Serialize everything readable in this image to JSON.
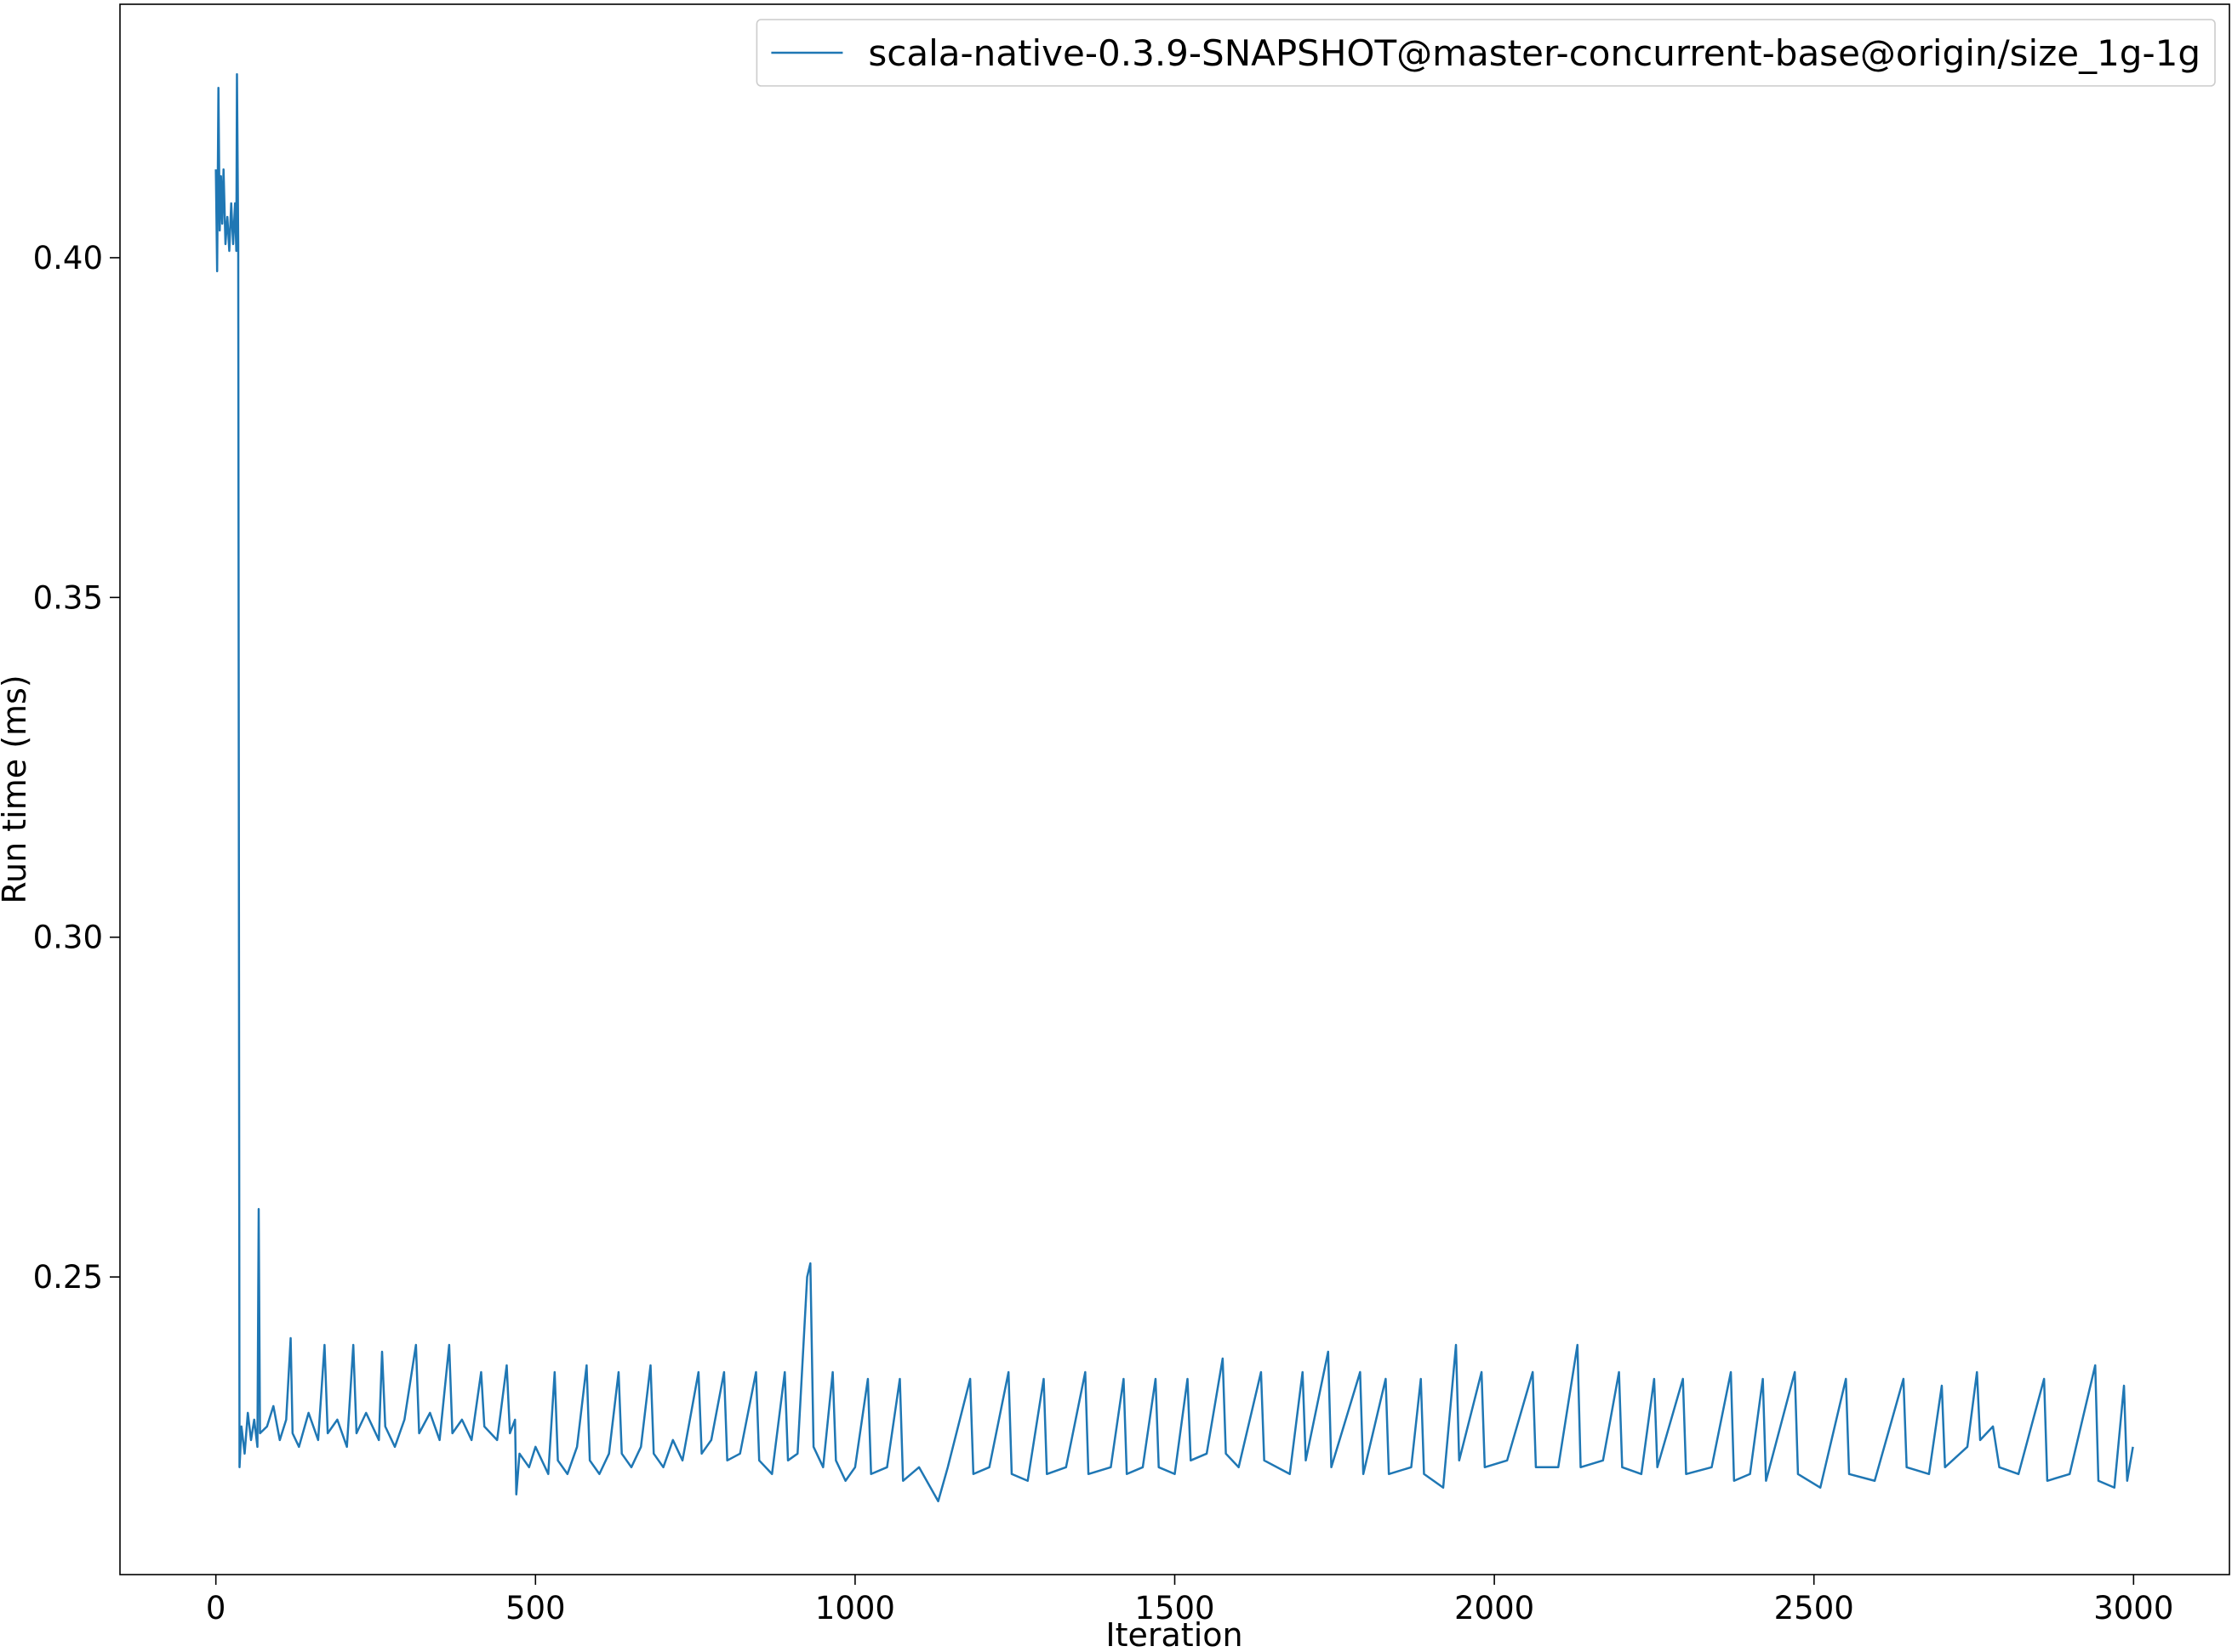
{
  "chart_data": {
    "type": "line",
    "xlabel": "Iteration",
    "ylabel": "Run time (ms)",
    "xlim": [
      -150,
      3150
    ],
    "ylim": [
      0.2062,
      0.4373
    ],
    "xticks": [
      0,
      500,
      1000,
      1500,
      2000,
      2500,
      3000
    ],
    "yticks": [
      0.25,
      {
        "value": 0.3,
        "label": "0.30"
      },
      0.35,
      {
        "value": 0.4,
        "label": "0.40"
      }
    ],
    "grid": false,
    "legend": "upper right",
    "x": [
      0,
      2,
      4,
      6,
      8,
      10,
      12,
      15,
      18,
      21,
      24,
      27,
      30,
      32,
      33,
      35,
      37,
      40,
      45,
      50,
      55,
      60,
      65,
      67,
      69,
      80,
      90,
      100,
      110,
      117,
      120,
      130,
      145,
      160,
      170,
      175,
      190,
      205,
      215,
      220,
      235,
      255,
      260,
      265,
      280,
      295,
      313,
      318,
      335,
      350,
      365,
      370,
      385,
      400,
      415,
      420,
      440,
      455,
      460,
      468,
      470,
      475,
      490,
      500,
      520,
      530,
      535,
      550,
      565,
      580,
      585,
      600,
      615,
      630,
      635,
      650,
      665,
      680,
      685,
      700,
      715,
      730,
      755,
      760,
      775,
      795,
      800,
      820,
      845,
      850,
      870,
      890,
      895,
      910,
      925,
      930,
      935,
      950,
      965,
      970,
      985,
      1000,
      1020,
      1025,
      1050,
      1070,
      1075,
      1100,
      1130,
      1145,
      1180,
      1185,
      1210,
      1240,
      1245,
      1270,
      1295,
      1300,
      1330,
      1360,
      1365,
      1400,
      1420,
      1425,
      1450,
      1470,
      1475,
      1500,
      1520,
      1525,
      1550,
      1575,
      1580,
      1600,
      1635,
      1640,
      1680,
      1700,
      1705,
      1740,
      1745,
      1790,
      1795,
      1830,
      1835,
      1870,
      1885,
      1890,
      1920,
      1940,
      1945,
      1980,
      1985,
      2020,
      2060,
      2065,
      2100,
      2130,
      2135,
      2170,
      2195,
      2200,
      2230,
      2250,
      2255,
      2295,
      2300,
      2340,
      2370,
      2375,
      2400,
      2420,
      2425,
      2470,
      2475,
      2510,
      2550,
      2555,
      2595,
      2640,
      2645,
      2680,
      2700,
      2705,
      2740,
      2755,
      2760,
      2780,
      2790,
      2820,
      2860,
      2865,
      2900,
      2940,
      2945,
      2970,
      2985,
      2990,
      2999
    ],
    "series": [
      {
        "name": "scala-native-0.3.9-SNAPSHOT@master-concurrent-base@origin/size_1g-1g",
        "color": "#1f77b4",
        "values": [
          0.413,
          0.398,
          0.425,
          0.404,
          0.412,
          0.405,
          0.413,
          0.402,
          0.406,
          0.401,
          0.408,
          0.402,
          0.408,
          0.401,
          0.427,
          0.402,
          0.222,
          0.228,
          0.224,
          0.23,
          0.226,
          0.229,
          0.225,
          0.26,
          0.227,
          0.228,
          0.231,
          0.226,
          0.229,
          0.241,
          0.227,
          0.225,
          0.23,
          0.226,
          0.24,
          0.227,
          0.229,
          0.225,
          0.24,
          0.227,
          0.23,
          0.226,
          0.239,
          0.228,
          0.225,
          0.229,
          0.24,
          0.227,
          0.23,
          0.226,
          0.24,
          0.227,
          0.229,
          0.226,
          0.236,
          0.228,
          0.226,
          0.237,
          0.227,
          0.229,
          0.218,
          0.224,
          0.222,
          0.225,
          0.221,
          0.236,
          0.223,
          0.221,
          0.225,
          0.237,
          0.223,
          0.221,
          0.224,
          0.236,
          0.224,
          0.222,
          0.225,
          0.237,
          0.224,
          0.222,
          0.226,
          0.223,
          0.236,
          0.224,
          0.226,
          0.236,
          0.223,
          0.224,
          0.236,
          0.223,
          0.221,
          0.236,
          0.223,
          0.224,
          0.25,
          0.252,
          0.225,
          0.222,
          0.236,
          0.223,
          0.22,
          0.222,
          0.235,
          0.221,
          0.222,
          0.235,
          0.22,
          0.222,
          0.217,
          0.222,
          0.235,
          0.221,
          0.222,
          0.236,
          0.221,
          0.22,
          0.235,
          0.221,
          0.222,
          0.236,
          0.221,
          0.222,
          0.235,
          0.221,
          0.222,
          0.235,
          0.222,
          0.221,
          0.235,
          0.223,
          0.224,
          0.238,
          0.224,
          0.222,
          0.236,
          0.223,
          0.221,
          0.236,
          0.223,
          0.239,
          0.222,
          0.236,
          0.221,
          0.235,
          0.221,
          0.222,
          0.235,
          0.221,
          0.219,
          0.24,
          0.223,
          0.236,
          0.222,
          0.223,
          0.236,
          0.222,
          0.222,
          0.24,
          0.222,
          0.223,
          0.236,
          0.222,
          0.221,
          0.235,
          0.222,
          0.235,
          0.221,
          0.222,
          0.236,
          0.22,
          0.221,
          0.235,
          0.22,
          0.236,
          0.221,
          0.219,
          0.235,
          0.221,
          0.22,
          0.235,
          0.222,
          0.221,
          0.234,
          0.222,
          0.225,
          0.236,
          0.226,
          0.228,
          0.222,
          0.221,
          0.235,
          0.22,
          0.221,
          0.237,
          0.22,
          0.219,
          0.234,
          0.22,
          0.225
        ]
      }
    ]
  }
}
